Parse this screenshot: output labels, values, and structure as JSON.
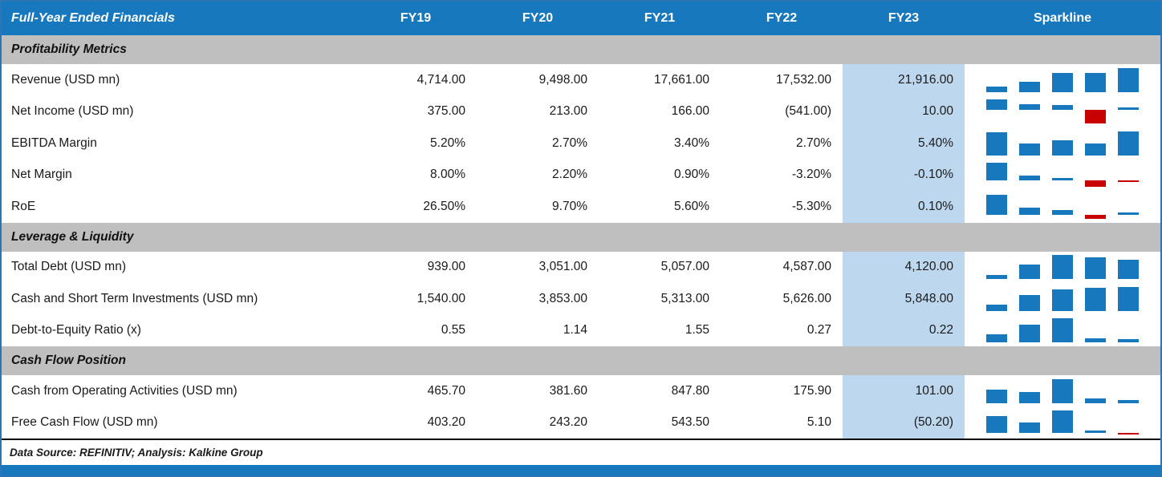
{
  "colors": {
    "header_bg": "#1878BE",
    "section_bg": "#BFBFBF",
    "highlight_bg": "#BDD7EE",
    "positive_bar": "#1878BE",
    "negative_bar": "#C80000",
    "border_blue": "#2E75B6"
  },
  "table": {
    "header": {
      "title": "Full-Year Ended Financials",
      "columns": [
        "FY19",
        "FY20",
        "FY21",
        "FY22",
        "FY23"
      ],
      "sparkline_label": "Sparkline"
    },
    "sections": [
      {
        "title": "Profitability Metrics",
        "rows": [
          {
            "label": "Revenue (USD mn)",
            "values": [
              "4,714.00",
              "9,498.00",
              "17,661.00",
              "17,532.00",
              "21,916.00"
            ],
            "spark": [
              4714,
              9498,
              17661,
              17532,
              21916
            ]
          },
          {
            "label": "Net Income (USD mn)",
            "values": [
              "375.00",
              "213.00",
              "166.00",
              "(541.00)",
              "10.00"
            ],
            "spark": [
              375,
              213,
              166,
              -541,
              10
            ]
          },
          {
            "label": "EBITDA Margin",
            "values": [
              "5.20%",
              "2.70%",
              "3.40%",
              "2.70%",
              "5.40%"
            ],
            "spark": [
              5.2,
              2.7,
              3.4,
              2.7,
              5.4
            ]
          },
          {
            "label": "Net Margin",
            "values": [
              "8.00%",
              "2.20%",
              "0.90%",
              "-3.20%",
              "-0.10%"
            ],
            "spark": [
              8.0,
              2.2,
              0.9,
              -3.2,
              -0.1
            ]
          },
          {
            "label": "RoE",
            "values": [
              "26.50%",
              "9.70%",
              "5.60%",
              "-5.30%",
              "0.10%"
            ],
            "spark": [
              26.5,
              9.7,
              5.6,
              -5.3,
              0.1
            ]
          }
        ]
      },
      {
        "title": "Leverage & Liquidity",
        "rows": [
          {
            "label": "Total Debt (USD mn)",
            "values": [
              "939.00",
              "3,051.00",
              "5,057.00",
              "4,587.00",
              "4,120.00"
            ],
            "spark": [
              939,
              3051,
              5057,
              4587,
              4120
            ]
          },
          {
            "label": "Cash and Short Term Investments (USD mn)",
            "values": [
              "1,540.00",
              "3,853.00",
              "5,313.00",
              "5,626.00",
              "5,848.00"
            ],
            "spark": [
              1540,
              3853,
              5313,
              5626,
              5848
            ]
          },
          {
            "label": "Debt-to-Equity Ratio (x)",
            "values": [
              "0.55",
              "1.14",
              "1.55",
              "0.27",
              "0.22"
            ],
            "spark": [
              0.55,
              1.14,
              1.55,
              0.27,
              0.22
            ]
          }
        ]
      },
      {
        "title": "Cash Flow Position",
        "rows": [
          {
            "label": "Cash from Operating Activities (USD mn)",
            "values": [
              "465.70",
              "381.60",
              "847.80",
              "175.90",
              "101.00"
            ],
            "spark": [
              465.7,
              381.6,
              847.8,
              175.9,
              101.0
            ]
          },
          {
            "label": "Free Cash Flow (USD mn)",
            "values": [
              "403.20",
              "243.20",
              "543.50",
              "5.10",
              "(50.20)"
            ],
            "spark": [
              403.2,
              243.2,
              543.5,
              5.1,
              -50.2
            ]
          }
        ]
      }
    ],
    "footer": "Data Source: REFINITIV; Analysis: Kalkine Group"
  },
  "chart_data": {
    "type": "table",
    "title": "Full-Year Ended Financials",
    "columns": [
      "FY19",
      "FY20",
      "FY21",
      "FY22",
      "FY23"
    ],
    "sections": [
      {
        "title": "Profitability Metrics",
        "rows": [
          {
            "label": "Revenue (USD mn)",
            "values": [
              4714.0,
              9498.0,
              17661.0,
              17532.0,
              21916.0
            ]
          },
          {
            "label": "Net Income (USD mn)",
            "values": [
              375.0,
              213.0,
              166.0,
              -541.0,
              10.0
            ]
          },
          {
            "label": "EBITDA Margin (%)",
            "values": [
              5.2,
              2.7,
              3.4,
              2.7,
              5.4
            ]
          },
          {
            "label": "Net Margin (%)",
            "values": [
              8.0,
              2.2,
              0.9,
              -3.2,
              -0.1
            ]
          },
          {
            "label": "RoE (%)",
            "values": [
              26.5,
              9.7,
              5.6,
              -5.3,
              0.1
            ]
          }
        ]
      },
      {
        "title": "Leverage & Liquidity",
        "rows": [
          {
            "label": "Total Debt (USD mn)",
            "values": [
              939.0,
              3051.0,
              5057.0,
              4587.0,
              4120.0
            ]
          },
          {
            "label": "Cash and Short Term Investments (USD mn)",
            "values": [
              1540.0,
              3853.0,
              5313.0,
              5626.0,
              5848.0
            ]
          },
          {
            "label": "Debt-to-Equity Ratio (x)",
            "values": [
              0.55,
              1.14,
              1.55,
              0.27,
              0.22
            ]
          }
        ]
      },
      {
        "title": "Cash Flow Position",
        "rows": [
          {
            "label": "Cash from Operating Activities (USD mn)",
            "values": [
              465.7,
              381.6,
              847.8,
              175.9,
              101.0
            ]
          },
          {
            "label": "Free Cash Flow (USD mn)",
            "values": [
              403.2,
              243.2,
              543.5,
              5.1,
              -50.2
            ]
          }
        ]
      }
    ],
    "sparkline": {
      "type": "bar",
      "per_row": true,
      "negative_color": "#C80000",
      "positive_color": "#1878BE"
    },
    "highlight_column": "FY23"
  }
}
